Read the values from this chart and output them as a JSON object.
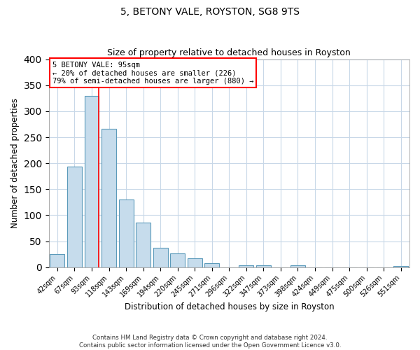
{
  "title": "5, BETONY VALE, ROYSTON, SG8 9TS",
  "subtitle": "Size of property relative to detached houses in Royston",
  "xlabel": "Distribution of detached houses by size in Royston",
  "ylabel": "Number of detached properties",
  "bar_labels": [
    "42sqm",
    "67sqm",
    "93sqm",
    "118sqm",
    "143sqm",
    "169sqm",
    "194sqm",
    "220sqm",
    "245sqm",
    "271sqm",
    "296sqm",
    "322sqm",
    "347sqm",
    "373sqm",
    "398sqm",
    "424sqm",
    "449sqm",
    "475sqm",
    "500sqm",
    "526sqm",
    "551sqm"
  ],
  "bar_values": [
    25,
    193,
    330,
    266,
    130,
    86,
    38,
    26,
    17,
    8,
    0,
    4,
    4,
    0,
    4,
    0,
    0,
    0,
    0,
    0,
    3
  ],
  "bar_color": "#c6dcec",
  "bar_edge_color": "#5b9aba",
  "annotation_line1": "5 BETONY VALE: 95sqm",
  "annotation_line2": "← 20% of detached houses are smaller (226)",
  "annotation_line3": "79% of semi-detached houses are larger (880) →",
  "red_line_bar_index": 2,
  "ylim": [
    0,
    400
  ],
  "yticks": [
    0,
    50,
    100,
    150,
    200,
    250,
    300,
    350,
    400
  ],
  "footer_line1": "Contains HM Land Registry data © Crown copyright and database right 2024.",
  "footer_line2": "Contains public sector information licensed under the Open Government Licence v3.0.",
  "title_fontsize": 10,
  "subtitle_fontsize": 9
}
